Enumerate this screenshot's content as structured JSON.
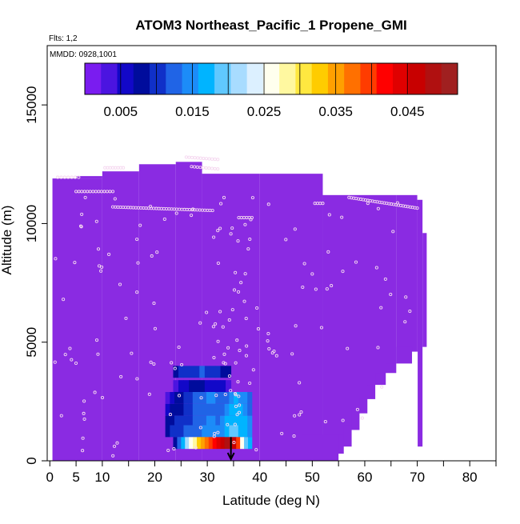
{
  "chart_data": {
    "type": "heatmap",
    "title": "ATOM3 Northeast_Pacific_1 Propene_GMI",
    "subtitle_flights": "Flts: 1,2",
    "subtitle_dates": "MMDD: 0928,1001",
    "xlabel": "Latitude (deg N)",
    "ylabel": "Altitude (m)",
    "xlim": [
      -0.5,
      85
    ],
    "ylim": [
      0,
      17500
    ],
    "x_ticks": [
      0,
      5,
      10,
      20,
      30,
      40,
      50,
      60,
      70,
      80
    ],
    "x_minor_ticks": [
      15,
      25,
      35,
      45,
      55,
      65,
      75,
      85
    ],
    "y_ticks": [
      0,
      5000,
      10000,
      15000
    ],
    "colorbar": {
      "range": [
        0,
        0.052
      ],
      "tick_values": [
        0.005,
        0.015,
        0.025,
        0.035,
        0.045
      ],
      "tick_labels": [
        "0.005",
        "0.015",
        "0.025",
        "0.035",
        "0.045"
      ],
      "colors": [
        "#7a1cf0",
        "#4b14e0",
        "#1208c8",
        "#000c9c",
        "#1030c8",
        "#2064e6",
        "#1c8cf8",
        "#00b4ff",
        "#60c8ff",
        "#a8dcff",
        "#dcf0ff",
        "#ffffee",
        "#fff8a0",
        "#ffe840",
        "#ffcc00",
        "#ffa000",
        "#ff7000",
        "#ff3c00",
        "#ff0000",
        "#e00000",
        "#c80000",
        "#b01010",
        "#a02020"
      ]
    },
    "background_color": "#8a2be2",
    "marker_color": "#f5d8f0",
    "arrow_latitude": 34.5
  }
}
